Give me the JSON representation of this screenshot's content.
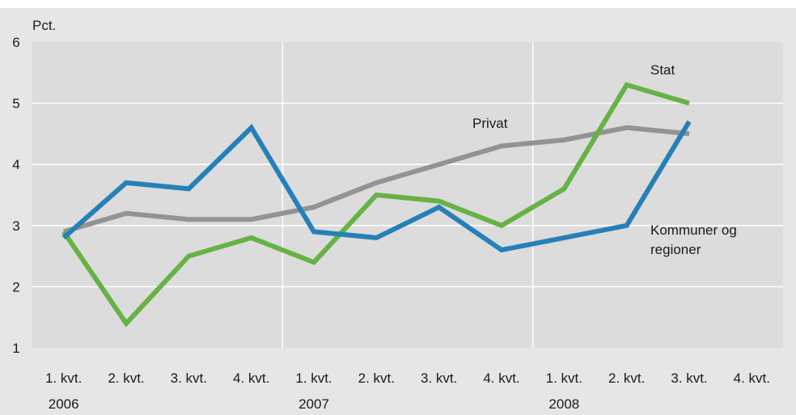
{
  "chart_data": {
    "type": "line",
    "title": "",
    "ylabel": "Pct.",
    "xlabel": "",
    "ylim": [
      1,
      6
    ],
    "yticks": [
      1,
      2,
      3,
      4,
      5,
      6
    ],
    "grid": true,
    "categories": [
      "1. kvt.",
      "2. kvt.",
      "3. kvt.",
      "4. kvt.",
      "1. kvt.",
      "2. kvt.",
      "3. kvt.",
      "4. kvt.",
      "1. kvt.",
      "2. kvt.",
      "3. kvt.",
      "4. kvt."
    ],
    "year_groups": [
      {
        "label": "2006",
        "start": 0,
        "end": 3
      },
      {
        "label": "2007",
        "start": 4,
        "end": 7
      },
      {
        "label": "2008",
        "start": 8,
        "end": 11
      }
    ],
    "series": [
      {
        "name": "Privat",
        "color": "#939393",
        "values": [
          2.9,
          3.2,
          3.1,
          3.1,
          3.3,
          3.7,
          4.0,
          4.3,
          4.4,
          4.6,
          4.5,
          null
        ]
      },
      {
        "name": "Stat",
        "color": "#66b245",
        "values": [
          2.9,
          1.4,
          2.5,
          2.8,
          2.4,
          3.5,
          3.4,
          3.0,
          3.6,
          5.3,
          5.0,
          null
        ]
      },
      {
        "name": "Kommuner og regioner",
        "label_lines": [
          "Kommuner og",
          "regioner"
        ],
        "color": "#2680b8",
        "values": [
          2.8,
          3.7,
          3.6,
          4.6,
          2.9,
          2.8,
          3.3,
          2.6,
          2.8,
          3.0,
          4.7,
          null
        ]
      }
    ]
  }
}
